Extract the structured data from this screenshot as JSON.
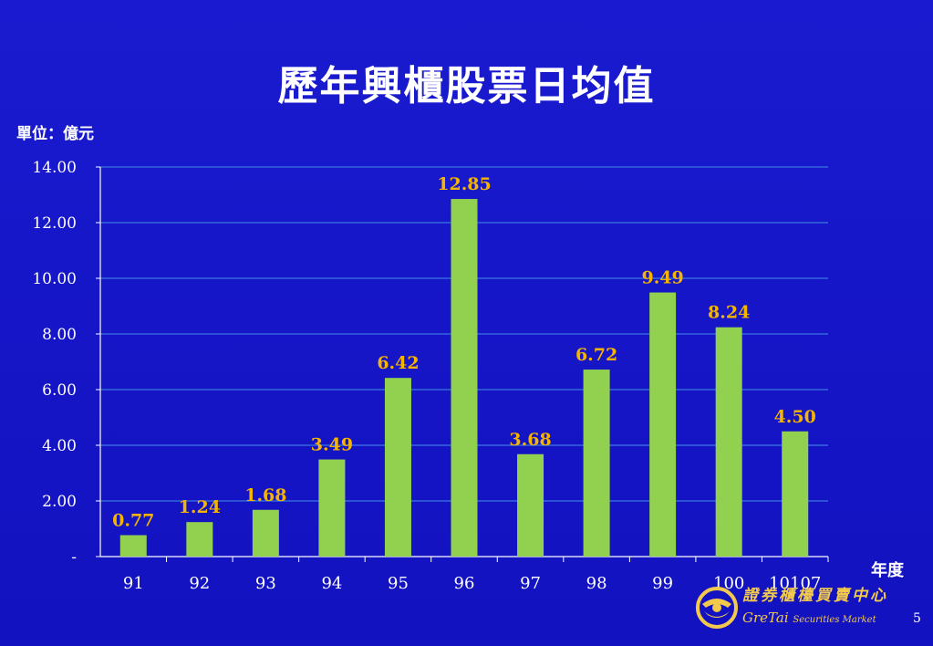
{
  "slide": {
    "title": "歷年興櫃股票日均值",
    "unit_label": "單位：億元",
    "xaxis_title": "年度",
    "page_number": "5"
  },
  "logo": {
    "chinese_text": "證券櫃檯買賣中心",
    "english_brand": "GreTai",
    "english_suffix": "Securities Market"
  },
  "colors": {
    "background": "#1616c8",
    "bar": "#92d050",
    "data_label": "#f5b400",
    "grid": "#3a78e0",
    "text": "#ffffff",
    "logo": "#f2c94c"
  },
  "chart_data": {
    "type": "bar",
    "categories": [
      "91",
      "92",
      "93",
      "94",
      "95",
      "96",
      "97",
      "98",
      "99",
      "100",
      "10107"
    ],
    "values": [
      0.77,
      1.24,
      1.68,
      3.49,
      6.42,
      12.85,
      3.68,
      6.72,
      9.49,
      8.24,
      4.5
    ],
    "data_labels": [
      "0.77",
      "1.24",
      "1.68",
      "3.49",
      "6.42",
      "12.85",
      "3.68",
      "6.72",
      "9.49",
      "8.24",
      "4.50"
    ],
    "title": "歷年興櫃股票日均值",
    "xlabel": "年度",
    "ylabel": "單位：億元",
    "ylim": [
      0,
      14
    ],
    "yticks": [
      0,
      2,
      4,
      6,
      8,
      10,
      12,
      14
    ],
    "ytick_labels": [
      "-",
      "2.00",
      "4.00",
      "6.00",
      "8.00",
      "10.00",
      "12.00",
      "14.00"
    ],
    "grid": true,
    "legend": "none"
  }
}
